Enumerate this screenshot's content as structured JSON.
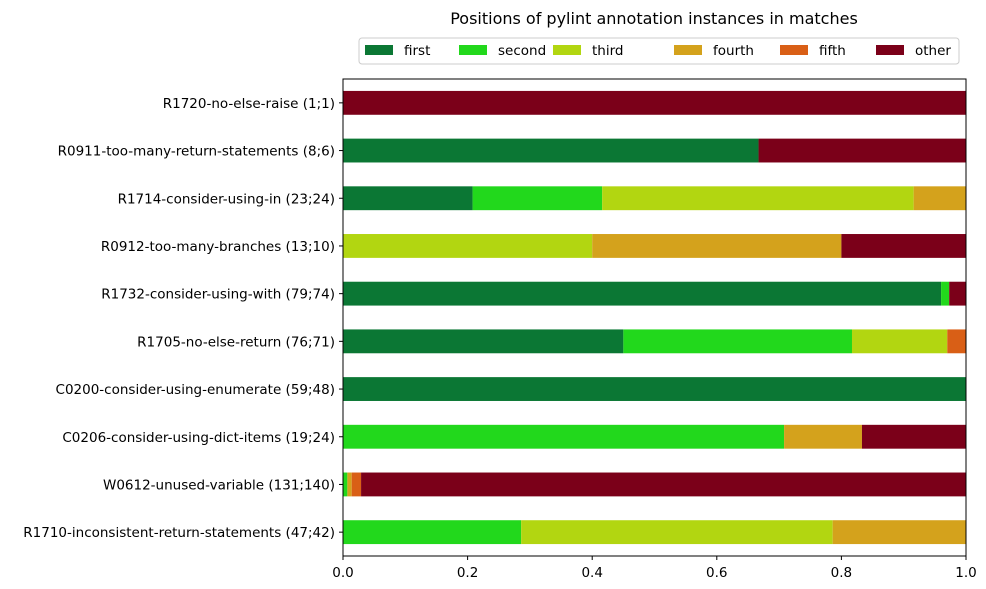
{
  "chart_data": {
    "type": "bar",
    "orientation": "horizontal",
    "stacked": true,
    "title": "Positions of pylint annotation instances in matches",
    "xlabel": "",
    "ylabel": "",
    "xlim": [
      0,
      1
    ],
    "xticks": [
      "0.0",
      "0.2",
      "0.4",
      "0.6",
      "0.8",
      "1.0"
    ],
    "grid": false,
    "legend_position": "top-center",
    "categories": [
      "R1720-no-else-raise (1;1)",
      "R0911-too-many-return-statements (8;6)",
      "R1714-consider-using-in (23;24)",
      "R0912-too-many-branches (13;10)",
      "R1732-consider-using-with (79;74)",
      "R1705-no-else-return (76;71)",
      "C0200-consider-using-enumerate (59;48)",
      "C0206-consider-using-dict-items (19;24)",
      "W0612-unused-variable (131;140)",
      "R1710-inconsistent-return-statements (47;42)"
    ],
    "series": [
      {
        "name": "first",
        "color": "#0b7734",
        "values": [
          0,
          0.667,
          0.208,
          0,
          0.96,
          0.45,
          1.0,
          0,
          0,
          0
        ]
      },
      {
        "name": "second",
        "color": "#22d81c",
        "values": [
          0,
          0,
          0.208,
          0,
          0.013,
          0.367,
          0,
          0.708,
          0.007,
          0.286
        ]
      },
      {
        "name": "third",
        "color": "#b2d611",
        "values": [
          0,
          0,
          0.5,
          0.4,
          0,
          0.153,
          0,
          0,
          0,
          0.5
        ]
      },
      {
        "name": "fourth",
        "color": "#d4a21c",
        "values": [
          0,
          0,
          0.084,
          0.4,
          0,
          0,
          0,
          0.125,
          0.007,
          0.214
        ]
      },
      {
        "name": "fifth",
        "color": "#d95f16",
        "values": [
          0,
          0,
          0,
          0,
          0,
          0.03,
          0,
          0,
          0.015,
          0
        ]
      },
      {
        "name": "other",
        "color": "#7b0019",
        "values": [
          1.0,
          0.333,
          0,
          0.2,
          0.027,
          0,
          0,
          0.167,
          0.971,
          0
        ]
      }
    ]
  }
}
